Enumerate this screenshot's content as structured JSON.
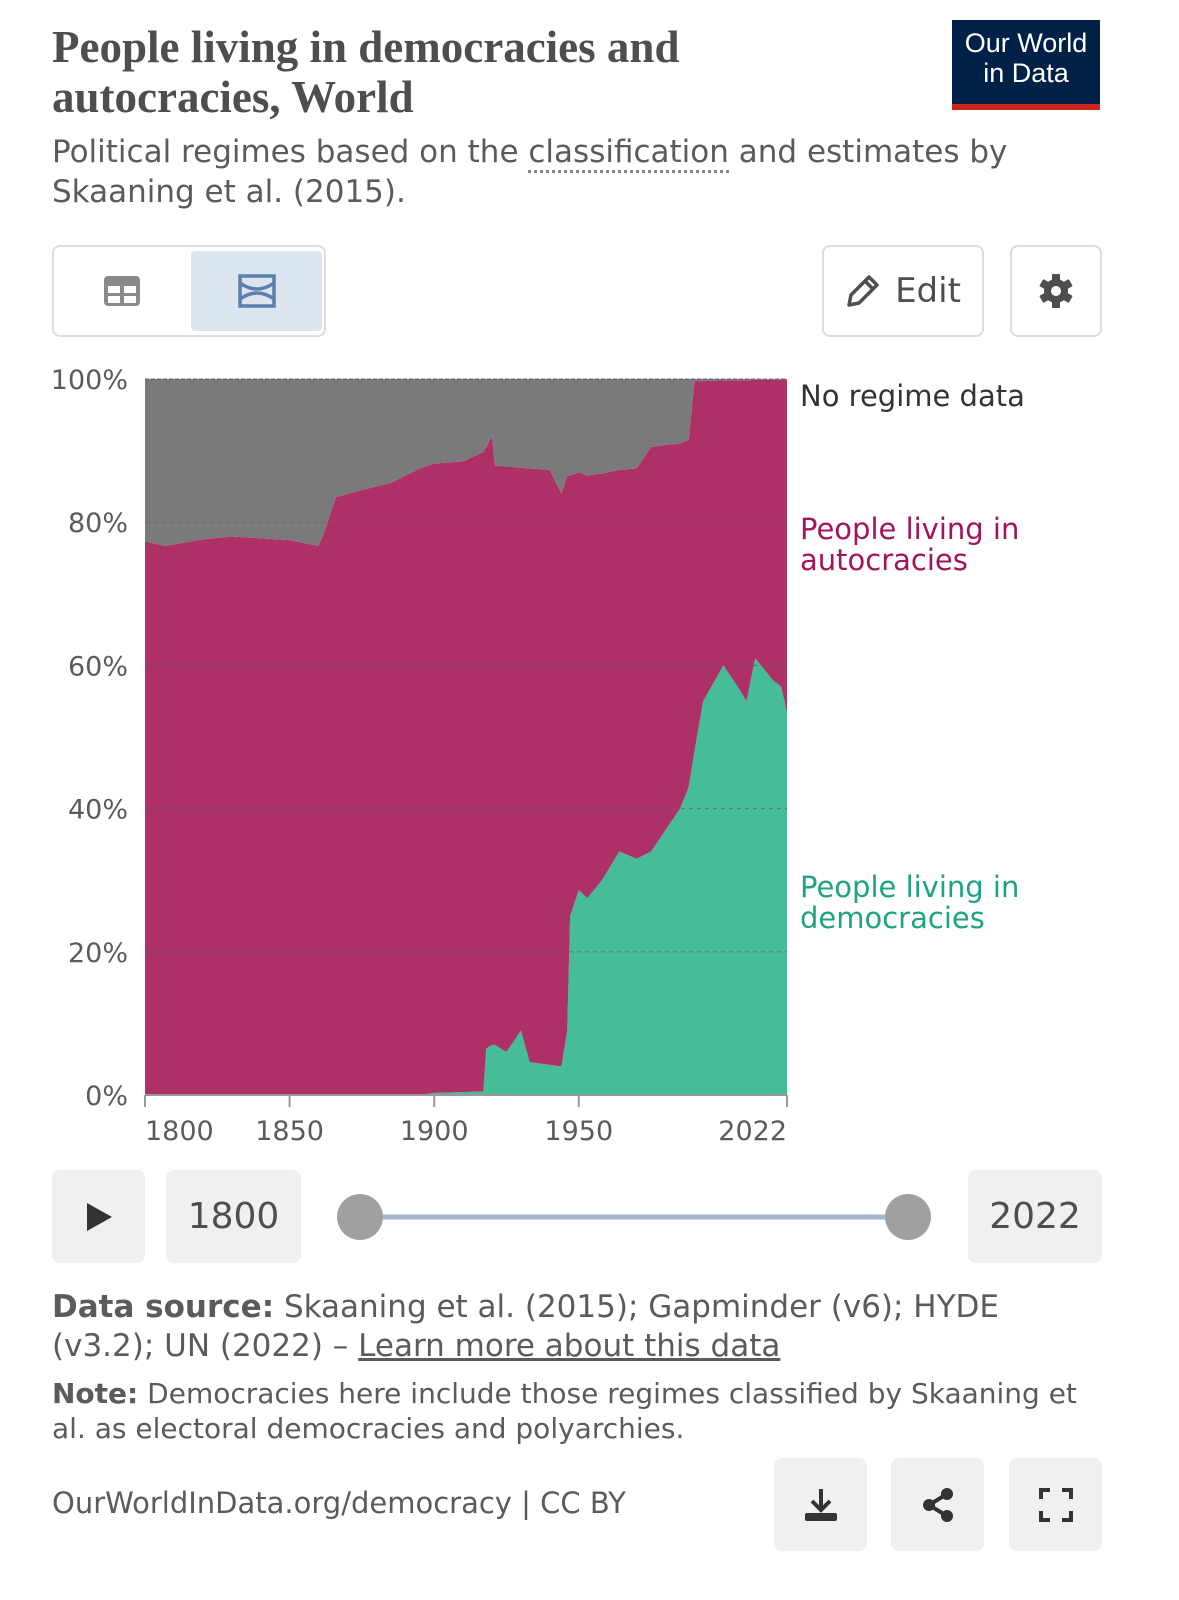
{
  "header": {
    "title": "People living in democracies and autocracies, World",
    "subtitle": [
      "Political regimes based on the ",
      "classification",
      " and estimates by Skaaning et al. (2015)."
    ],
    "logo": [
      "Our World",
      "in Data"
    ]
  },
  "controls": {
    "edit": "Edit"
  },
  "chart_data": {
    "type": "stacked_area",
    "x": [
      1800,
      1807,
      1820,
      1830,
      1850,
      1860,
      1862,
      1866,
      1875,
      1885,
      1895,
      1900,
      1910,
      1917,
      1918,
      1920,
      1921,
      1925,
      1930,
      1933,
      1940,
      1944,
      1946,
      1947,
      1950,
      1953,
      1958,
      1964,
      1970,
      1975,
      1980,
      1985,
      1988,
      1990,
      1993,
      2000,
      2005,
      2008,
      2011,
      2015,
      2017,
      2020,
      2022
    ],
    "series": [
      {
        "name": "People living in democracies",
        "color": "#45bd98",
        "label_color": "#1ea383",
        "values": [
          0,
          0,
          0,
          0,
          0,
          0,
          0,
          0,
          0,
          0,
          0,
          0.3,
          0.4,
          0.5,
          6.5,
          7,
          7,
          6,
          9,
          4.6,
          4.2,
          4,
          9,
          25,
          28.6,
          27.5,
          30,
          34,
          33,
          34,
          37,
          40,
          43,
          48,
          55,
          60,
          57,
          55,
          61,
          59,
          58,
          57,
          53.5
        ]
      },
      {
        "name": "People living in autocracies",
        "color": "#ad3166",
        "label_color": "#a2145b",
        "values": [
          77.3,
          76.7,
          77.6,
          78,
          77.5,
          76.7,
          78.6,
          83.5,
          84.5,
          85.5,
          87.5,
          87.9,
          88.1,
          89.3,
          84,
          85,
          80.9,
          81.8,
          78.6,
          82.9,
          83.1,
          80,
          77.5,
          61.5,
          58.4,
          59,
          56.8,
          53.3,
          54.5,
          56.5,
          53.8,
          51,
          48.5,
          51.7,
          44.7,
          39.8,
          42.8,
          44.8,
          38.9,
          40.9,
          41.9,
          42.9,
          46.5
        ]
      },
      {
        "name": "No regime data",
        "color": "#7a7a7a",
        "label_color": "#333333",
        "values": [
          22.7,
          23.3,
          22.4,
          22,
          22.5,
          23.3,
          21.4,
          16.5,
          15.5,
          14.5,
          12.5,
          11.8,
          11.5,
          10.2,
          9.5,
          8,
          12.1,
          12.2,
          12.4,
          12.5,
          12.7,
          16,
          13.5,
          13.5,
          13,
          13.5,
          13.2,
          12.7,
          12.5,
          9.5,
          9.2,
          9,
          8.5,
          0.3,
          0.3,
          0.2,
          0.2,
          0.2,
          0.1,
          0.1,
          0.1,
          0.1,
          0
        ]
      }
    ],
    "xlim": [
      1800,
      2022
    ],
    "xticks": [
      1800,
      1850,
      1900,
      1950,
      2022
    ],
    "ylim": [
      0,
      100
    ],
    "yticks": [
      {
        "value": 0,
        "label": "0%"
      },
      {
        "value": 20,
        "label": "20%"
      },
      {
        "value": 40,
        "label": "40%"
      },
      {
        "value": 60,
        "label": "60%"
      },
      {
        "value": 80,
        "label": "80%"
      },
      {
        "value": 100,
        "label": "100%"
      }
    ],
    "grid": true
  },
  "timeline": {
    "start": 1800,
    "end": 2022
  },
  "footer": {
    "source_label": "Data source:",
    "source": "Skaaning et al. (2015); Gapminder (v6); HYDE (v3.2); UN (2022) – ",
    "source_link": "Learn more about this data",
    "note_label": "Note:",
    "note": "Democracies here include those regimes classified by Skaaning et al. as electoral democracies and polyarchies.",
    "url": "OurWorldInData.org/democracy | CC BY"
  }
}
